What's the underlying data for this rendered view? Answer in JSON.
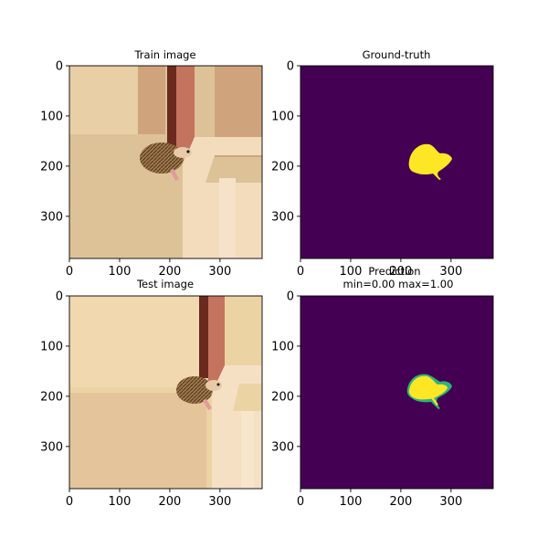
{
  "chart_data": [
    {
      "type": "image",
      "title": "Train image",
      "x_ticks": [
        0,
        100,
        200,
        300
      ],
      "y_ticks": [
        0,
        100,
        200,
        300
      ],
      "xlim": [
        0,
        384
      ],
      "ylim": [
        384,
        0
      ],
      "content": "photo",
      "colors": {
        "wall_a": "#ddc298",
        "wall_b": "#e9cfa6",
        "wall_c": "#cfa47c",
        "door_frame": "#c4735e",
        "door_dark": "#6b2a1e",
        "floor": "#f3dcbc"
      }
    },
    {
      "type": "heatmap",
      "title": "Ground-truth",
      "x_ticks": [
        0,
        100,
        200,
        300
      ],
      "y_ticks": [
        0,
        100,
        200,
        300
      ],
      "xlim": [
        0,
        384
      ],
      "ylim": [
        384,
        0
      ],
      "colormap": "viridis",
      "range": [
        0,
        1
      ],
      "background_value": 0,
      "mask_value": 1,
      "colors": {
        "low": "#440154",
        "high": "#fde725"
      }
    },
    {
      "type": "image",
      "title": "Test image",
      "x_ticks": [
        0,
        100,
        200,
        300
      ],
      "y_ticks": [
        0,
        100,
        200,
        300
      ],
      "xlim": [
        0,
        384
      ],
      "ylim": [
        384,
        0
      ],
      "content": "photo",
      "colors": {
        "wall_a": "#ecd3a4",
        "wall_b": "#f2d8ae",
        "wall_c": "#e4c49a",
        "door_frame": "#c4735e",
        "door_dark": "#6b2a1e",
        "floor": "#f5e0c4"
      }
    },
    {
      "type": "heatmap",
      "title": "Prediction",
      "subtitle": "min=0.00 max=1.00",
      "x_ticks": [
        0,
        100,
        200,
        300
      ],
      "y_ticks": [
        0,
        100,
        200,
        300
      ],
      "xlim": [
        0,
        384
      ],
      "ylim": [
        384,
        0
      ],
      "colormap": "viridis",
      "range": [
        0.0,
        1.0
      ],
      "background_value": 0.0,
      "mask_value": 1.0,
      "edge_value": 0.55,
      "colors": {
        "low": "#440154",
        "high": "#fde725",
        "mid": "#2db27d"
      }
    }
  ]
}
